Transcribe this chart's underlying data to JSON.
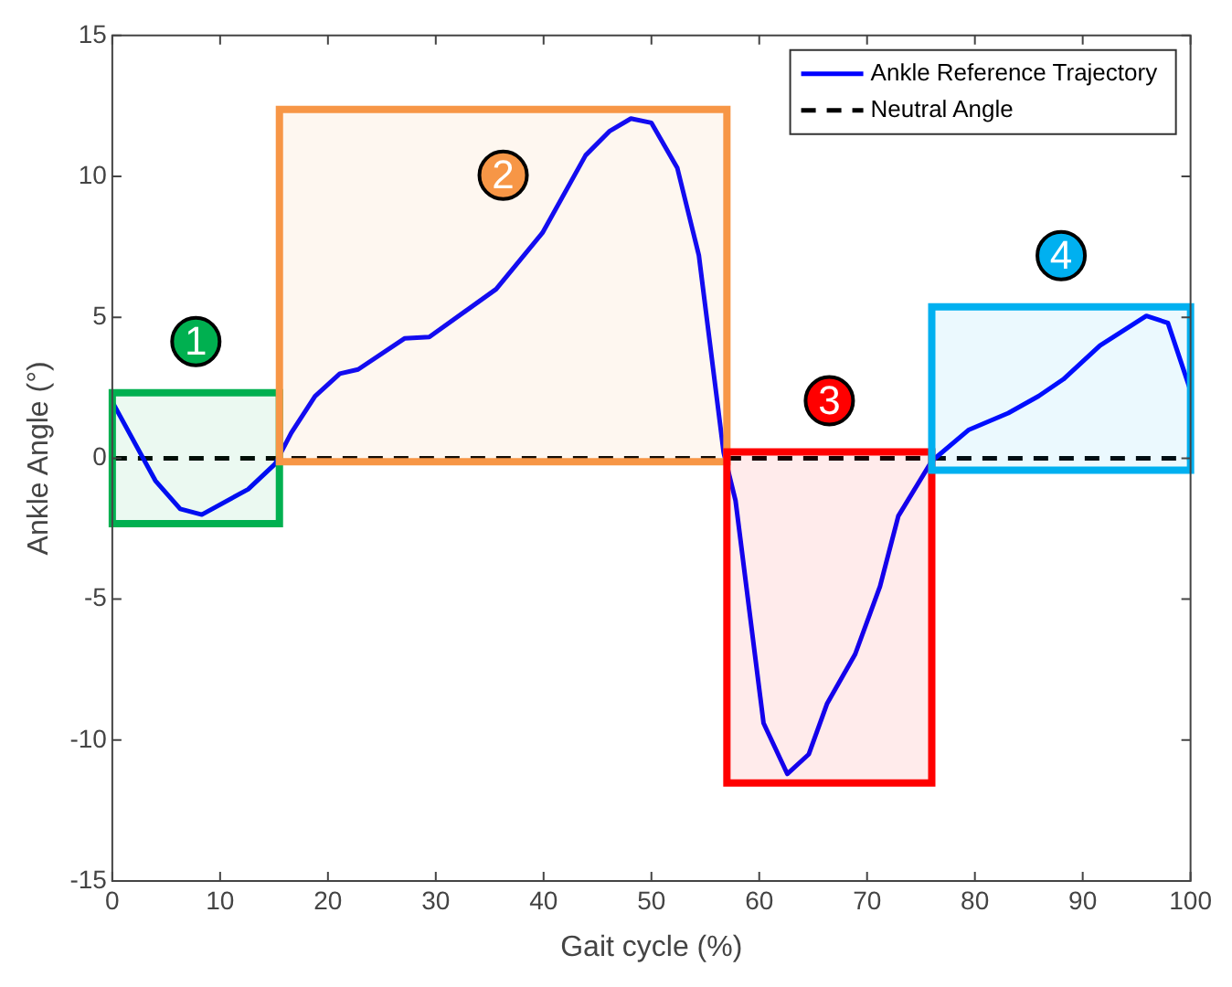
{
  "chart_data": {
    "type": "line",
    "xlabel": "Gait cycle (%)",
    "ylabel": "Ankle Angle (°)",
    "series": [
      {
        "name": "Ankle Reference Trajectory",
        "color": "#0000ff",
        "x": [
          0,
          4,
          6.3,
          8.3,
          12.6,
          15.1,
          16.6,
          18.8,
          21.1,
          22.8,
          27.1,
          29.4,
          35.6,
          39.9,
          43.9,
          46.1,
          48.1,
          50,
          52.4,
          54.4,
          56.7,
          57.8,
          60.4,
          62.6,
          64.6,
          66.3,
          68.9,
          71.2,
          72.9,
          76,
          79.4,
          83.1,
          85.9,
          88.2,
          91.6,
          95.9,
          97.9,
          100
        ],
        "values": [
          2,
          -0.8,
          -1.8,
          -2,
          -1.1,
          -0.2,
          0.9,
          2.2,
          3,
          3.15,
          4.25,
          4.3,
          6,
          8,
          10.75,
          11.6,
          12.05,
          11.9,
          10.3,
          7.2,
          0.2,
          -1.5,
          -9.4,
          -11.2,
          -10.5,
          -8.7,
          -6.95,
          -4.55,
          -2.05,
          -0.1,
          1,
          1.6,
          2.2,
          2.8,
          4,
          5.05,
          4.8,
          2.4
        ]
      }
    ],
    "ref_lines": [
      {
        "axis": "y",
        "value": 0,
        "label": "Neutral Angle",
        "color": "#000000",
        "line_style": "dashed"
      }
    ],
    "bands": [
      {
        "axis": "x",
        "from": 0,
        "to": 15.5,
        "label": "1",
        "color": "#00b050"
      },
      {
        "axis": "x",
        "from": 15.5,
        "to": 57,
        "label": "2",
        "color": "#f79646"
      },
      {
        "axis": "x",
        "from": 57,
        "to": 76,
        "label": "3",
        "color": "#ff0000"
      },
      {
        "axis": "x",
        "from": 76,
        "to": 100,
        "label": "4",
        "color": "#00b0f0"
      }
    ],
    "xlim": [
      0,
      100
    ],
    "xticks": [
      0,
      10,
      20,
      30,
      40,
      50,
      60,
      70,
      80,
      90,
      100
    ],
    "ylim": [
      -15,
      15
    ],
    "yticks": [
      -15,
      -10,
      -5,
      0,
      5,
      10,
      15
    ],
    "grid": false,
    "legend": "top right",
    "marker": "none",
    "line_style": "solid"
  }
}
